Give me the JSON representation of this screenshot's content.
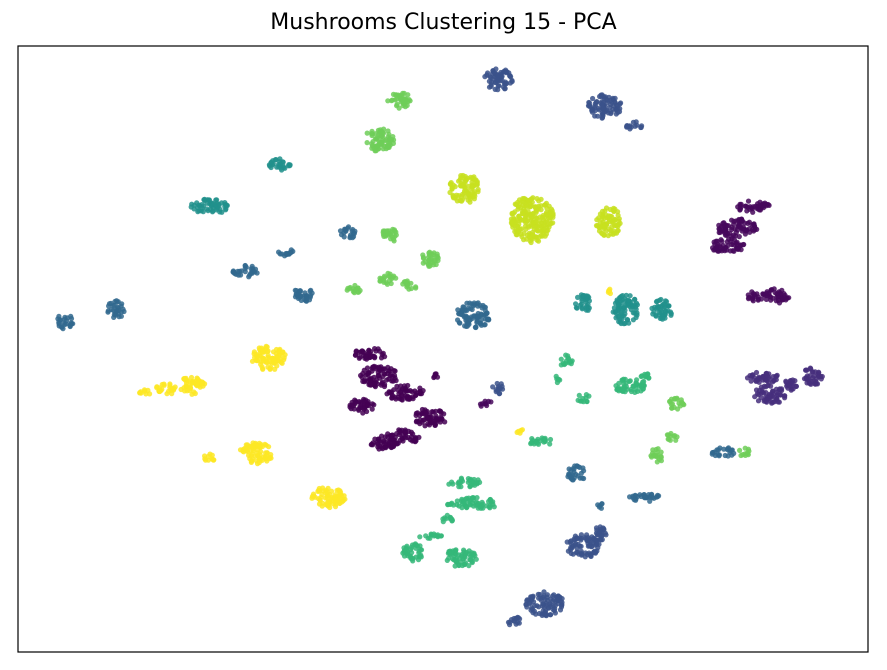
{
  "chart_data": {
    "type": "scatter",
    "title": "Mushrooms Clustering 15 - PCA",
    "xlabel": "",
    "ylabel": "",
    "xlim": [
      0,
      100
    ],
    "ylim": [
      0,
      100
    ],
    "show_axes_ticks": false,
    "grid": false,
    "legend": "none",
    "palette": "viridis",
    "clusters": [
      {
        "color": "#440154",
        "points": [
          {
            "x": 41.5,
            "y": 49.2,
            "w": 4.0,
            "h": 2.0
          },
          {
            "x": 42.5,
            "y": 45.5,
            "w": 4.5,
            "h": 3.5
          },
          {
            "x": 45.5,
            "y": 42.8,
            "w": 4.5,
            "h": 2.5
          },
          {
            "x": 40.5,
            "y": 40.6,
            "w": 3.0,
            "h": 2.5
          },
          {
            "x": 48.5,
            "y": 38.7,
            "w": 4.0,
            "h": 3.0
          },
          {
            "x": 45.2,
            "y": 35.5,
            "w": 4.0,
            "h": 2.5
          },
          {
            "x": 43.0,
            "y": 34.5,
            "w": 3.0,
            "h": 2.5
          },
          {
            "x": 49.2,
            "y": 45.5,
            "w": 1.0,
            "h": 1.0
          }
        ]
      },
      {
        "color": "#46085c",
        "points": [
          {
            "x": 86.5,
            "y": 73.5,
            "w": 4.0,
            "h": 2.0
          },
          {
            "x": 84.5,
            "y": 70.0,
            "w": 5.0,
            "h": 3.0
          },
          {
            "x": 83.5,
            "y": 67.0,
            "w": 4.0,
            "h": 2.5
          },
          {
            "x": 89.0,
            "y": 58.7,
            "w": 3.5,
            "h": 2.5
          },
          {
            "x": 86.5,
            "y": 58.5,
            "w": 1.5,
            "h": 2.0
          },
          {
            "x": 55.0,
            "y": 41.0,
            "w": 1.5,
            "h": 1.2
          }
        ]
      },
      {
        "color": "#472f7d",
        "points": [
          {
            "x": 87.5,
            "y": 45.3,
            "w": 4.0,
            "h": 2.0
          },
          {
            "x": 88.5,
            "y": 42.5,
            "w": 4.0,
            "h": 3.0
          },
          {
            "x": 93.5,
            "y": 45.5,
            "w": 2.5,
            "h": 3.0
          },
          {
            "x": 91.0,
            "y": 44.0,
            "w": 2.0,
            "h": 2.0
          }
        ]
      },
      {
        "color": "#3b528b",
        "points": [
          {
            "x": 56.5,
            "y": 94.5,
            "w": 3.5,
            "h": 3.5
          },
          {
            "x": 69.0,
            "y": 90.0,
            "w": 4.0,
            "h": 4.0
          },
          {
            "x": 72.5,
            "y": 86.9,
            "w": 2.0,
            "h": 1.5
          },
          {
            "x": 66.5,
            "y": 17.5,
            "w": 4.0,
            "h": 4.0
          },
          {
            "x": 68.5,
            "y": 19.5,
            "w": 1.5,
            "h": 3.0
          },
          {
            "x": 62.0,
            "y": 8.0,
            "w": 4.5,
            "h": 4.0
          },
          {
            "x": 58.5,
            "y": 5.0,
            "w": 2.0,
            "h": 1.5
          },
          {
            "x": 56.5,
            "y": 43.5,
            "w": 1.5,
            "h": 2.0
          }
        ]
      },
      {
        "color": "#31688e",
        "points": [
          {
            "x": 5.5,
            "y": 54.5,
            "w": 2.0,
            "h": 2.5
          },
          {
            "x": 11.5,
            "y": 56.5,
            "w": 2.0,
            "h": 3.0
          },
          {
            "x": 26.8,
            "y": 62.8,
            "w": 3.0,
            "h": 2.0
          },
          {
            "x": 31.5,
            "y": 66.0,
            "w": 1.8,
            "h": 1.5
          },
          {
            "x": 33.5,
            "y": 59.0,
            "w": 2.5,
            "h": 2.5
          },
          {
            "x": 38.8,
            "y": 69.2,
            "w": 1.8,
            "h": 2.2
          },
          {
            "x": 53.5,
            "y": 55.5,
            "w": 4.0,
            "h": 4.5
          },
          {
            "x": 65.8,
            "y": 29.5,
            "w": 2.5,
            "h": 2.5
          },
          {
            "x": 73.8,
            "y": 25.5,
            "w": 4.0,
            "h": 1.5
          },
          {
            "x": 83.0,
            "y": 33.0,
            "w": 3.0,
            "h": 1.5
          },
          {
            "x": 68.5,
            "y": 24.0,
            "w": 0.8,
            "h": 1.2
          }
        ]
      },
      {
        "color": "#21918c",
        "points": [
          {
            "x": 31.0,
            "y": 80.5,
            "w": 3.0,
            "h": 2.0
          },
          {
            "x": 22.5,
            "y": 73.5,
            "w": 4.5,
            "h": 2.5
          },
          {
            "x": 66.5,
            "y": 57.5,
            "w": 2.0,
            "h": 3.0
          },
          {
            "x": 71.5,
            "y": 56.5,
            "w": 3.0,
            "h": 5.0
          },
          {
            "x": 75.8,
            "y": 56.5,
            "w": 2.5,
            "h": 3.5
          }
        ]
      },
      {
        "color": "#35b779",
        "points": [
          {
            "x": 52.5,
            "y": 28.0,
            "w": 4.0,
            "h": 1.5
          },
          {
            "x": 53.5,
            "y": 24.5,
            "w": 6.0,
            "h": 2.0
          },
          {
            "x": 50.5,
            "y": 22.0,
            "w": 1.5,
            "h": 1.5
          },
          {
            "x": 46.5,
            "y": 16.5,
            "w": 2.5,
            "h": 3.0
          },
          {
            "x": 52.0,
            "y": 15.5,
            "w": 4.0,
            "h": 3.0
          },
          {
            "x": 48.5,
            "y": 19.0,
            "w": 3.0,
            "h": 1.0
          },
          {
            "x": 61.5,
            "y": 34.8,
            "w": 3.0,
            "h": 1.5
          },
          {
            "x": 64.5,
            "y": 48.0,
            "w": 1.5,
            "h": 2.0
          },
          {
            "x": 63.5,
            "y": 45.0,
            "w": 1.0,
            "h": 1.2
          },
          {
            "x": 72.0,
            "y": 44.0,
            "w": 4.0,
            "h": 2.5
          },
          {
            "x": 73.8,
            "y": 45.3,
            "w": 1.5,
            "h": 1.5
          },
          {
            "x": 66.5,
            "y": 41.9,
            "w": 1.5,
            "h": 1.5
          }
        ]
      },
      {
        "color": "#6ece58",
        "points": [
          {
            "x": 45.0,
            "y": 91.0,
            "w": 3.0,
            "h": 2.5
          },
          {
            "x": 42.5,
            "y": 84.5,
            "w": 3.5,
            "h": 4.0
          },
          {
            "x": 43.8,
            "y": 68.8,
            "w": 2.0,
            "h": 2.5
          },
          {
            "x": 48.5,
            "y": 64.8,
            "w": 2.5,
            "h": 2.5
          },
          {
            "x": 43.5,
            "y": 61.5,
            "w": 2.0,
            "h": 2.0
          },
          {
            "x": 46.0,
            "y": 60.5,
            "w": 2.0,
            "h": 1.5
          },
          {
            "x": 39.5,
            "y": 59.8,
            "w": 2.0,
            "h": 1.5
          },
          {
            "x": 77.5,
            "y": 41.0,
            "w": 2.0,
            "h": 2.0
          },
          {
            "x": 77.0,
            "y": 35.5,
            "w": 1.5,
            "h": 1.5
          },
          {
            "x": 75.2,
            "y": 32.5,
            "w": 1.5,
            "h": 2.5
          },
          {
            "x": 85.5,
            "y": 33.0,
            "w": 1.5,
            "h": 1.5
          }
        ]
      },
      {
        "color": "#c8e020",
        "points": [
          {
            "x": 52.5,
            "y": 76.5,
            "w": 3.5,
            "h": 5.0
          },
          {
            "x": 60.5,
            "y": 71.5,
            "w": 5.0,
            "h": 8.0
          },
          {
            "x": 69.5,
            "y": 71.0,
            "w": 3.0,
            "h": 5.0
          }
        ]
      },
      {
        "color": "#fde725",
        "points": [
          {
            "x": 29.5,
            "y": 48.5,
            "w": 4.0,
            "h": 4.0
          },
          {
            "x": 20.5,
            "y": 44.0,
            "w": 3.0,
            "h": 3.0
          },
          {
            "x": 17.5,
            "y": 43.5,
            "w": 2.5,
            "h": 2.0
          },
          {
            "x": 15.0,
            "y": 43.0,
            "w": 1.5,
            "h": 1.2
          },
          {
            "x": 28.0,
            "y": 32.8,
            "w": 4.0,
            "h": 3.5
          },
          {
            "x": 22.5,
            "y": 32.0,
            "w": 1.5,
            "h": 1.5
          },
          {
            "x": 36.5,
            "y": 25.5,
            "w": 4.0,
            "h": 3.5
          },
          {
            "x": 59.0,
            "y": 36.5,
            "w": 0.8,
            "h": 0.8
          },
          {
            "x": 69.5,
            "y": 59.5,
            "w": 0.8,
            "h": 0.8
          }
        ]
      }
    ]
  }
}
